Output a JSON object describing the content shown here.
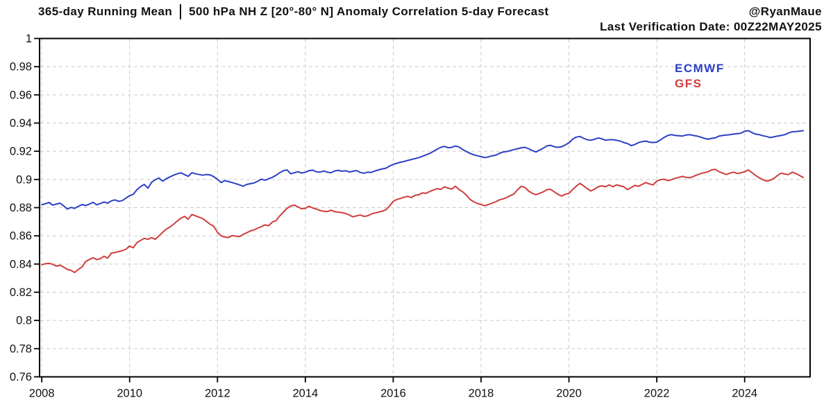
{
  "header": {
    "title_left": "365-day Running Mean",
    "title_right": "500 hPa NH Z [20°-80° N] Anomaly Correlation 5-day Forecast",
    "credit": "@RyanMaue",
    "verification": "Last Verification Date: 00Z22MAY2025"
  },
  "colors": {
    "ecmwf": "#2B3FC4",
    "gfs": "#D03C3C",
    "grid": "#c9c9c9",
    "axis": "#000000",
    "background": "#ffffff"
  },
  "chart_data": {
    "type": "line",
    "title": "365-day Running Mean | 500 hPa NH Z [20°-80° N] Anomaly Correlation 5-day Forecast",
    "subtitle": "Last Verification Date: 00Z22MAY2025",
    "grid": true,
    "legend_position": "top-right",
    "x_axis": {
      "label": "",
      "range": [
        2007.95,
        2025.49
      ],
      "ticks": [
        2008,
        2010,
        2012,
        2014,
        2016,
        2018,
        2020,
        2022,
        2024
      ]
    },
    "y_axis": {
      "label": "",
      "range": [
        0.76,
        1.0
      ],
      "ticks": [
        1,
        0.98,
        0.96,
        0.94,
        0.92,
        0.9,
        0.88,
        0.86,
        0.84,
        0.82,
        0.8,
        0.78,
        0.76
      ],
      "tick_labels": [
        "1",
        "0.98",
        "0.96",
        "0.94",
        "0.92",
        "0.9",
        "0.88",
        "0.86",
        "0.84",
        "0.82",
        "0.8",
        "0.78",
        "0.76"
      ]
    },
    "series": [
      {
        "name": "ECMWF",
        "color": "#2B3FC4",
        "start": 2008.0,
        "step": 0.0833333,
        "values": [
          0.882,
          0.8828,
          0.8837,
          0.8818,
          0.8825,
          0.8832,
          0.8812,
          0.879,
          0.8802,
          0.8795,
          0.881,
          0.8822,
          0.8815,
          0.8825,
          0.8838,
          0.882,
          0.883,
          0.884,
          0.8832,
          0.8848,
          0.8855,
          0.8845,
          0.885,
          0.8868,
          0.8885,
          0.8895,
          0.8928,
          0.895,
          0.8965,
          0.8938,
          0.898,
          0.8998,
          0.901,
          0.8988,
          0.9005,
          0.9018,
          0.903,
          0.904,
          0.9047,
          0.9035,
          0.9022,
          0.9048,
          0.904,
          0.9035,
          0.903,
          0.9035,
          0.9032,
          0.902,
          0.9,
          0.8978,
          0.8992,
          0.8985,
          0.8978,
          0.897,
          0.8962,
          0.8952,
          0.8965,
          0.897,
          0.8975,
          0.8988,
          0.9002,
          0.8995,
          0.9005,
          0.9015,
          0.903,
          0.9048,
          0.9062,
          0.9068,
          0.904,
          0.9048,
          0.9055,
          0.9045,
          0.9052,
          0.9062,
          0.9066,
          0.9055,
          0.9052,
          0.906,
          0.9052,
          0.9048,
          0.906,
          0.9065,
          0.9058,
          0.9062,
          0.9053,
          0.9058,
          0.9063,
          0.905,
          0.9044,
          0.9052,
          0.905,
          0.906,
          0.9068,
          0.9075,
          0.908,
          0.9095,
          0.9107,
          0.9115,
          0.9122,
          0.9128,
          0.9135,
          0.9142,
          0.9148,
          0.9155,
          0.9165,
          0.9175,
          0.9185,
          0.92,
          0.9215,
          0.9228,
          0.9235,
          0.9225,
          0.9228,
          0.9237,
          0.923,
          0.9212,
          0.9198,
          0.9185,
          0.9175,
          0.9168,
          0.9162,
          0.9155,
          0.916,
          0.9168,
          0.9172,
          0.9185,
          0.9195,
          0.9198,
          0.9205,
          0.9212,
          0.9218,
          0.9225,
          0.9228,
          0.9218,
          0.9205,
          0.9195,
          0.9208,
          0.9222,
          0.9238,
          0.9242,
          0.9232,
          0.9228,
          0.9232,
          0.9245,
          0.926,
          0.9285,
          0.93,
          0.9305,
          0.9292,
          0.9282,
          0.9278,
          0.9285,
          0.9295,
          0.9288,
          0.9278,
          0.9282,
          0.9282,
          0.9278,
          0.9272,
          0.9262,
          0.9255,
          0.924,
          0.9248,
          0.9262,
          0.9268,
          0.9272,
          0.9265,
          0.9262,
          0.9265,
          0.928,
          0.9298,
          0.9312,
          0.9318,
          0.9312,
          0.931,
          0.9308,
          0.9315,
          0.9318,
          0.9312,
          0.9308,
          0.93,
          0.9292,
          0.9285,
          0.9292,
          0.9295,
          0.9308,
          0.9312,
          0.9315,
          0.9318,
          0.9322,
          0.9325,
          0.9328,
          0.9342,
          0.9346,
          0.9332,
          0.9322,
          0.9318,
          0.931,
          0.9305,
          0.9297,
          0.9302,
          0.9308,
          0.9312,
          0.9318,
          0.933,
          0.9338,
          0.934,
          0.9343,
          0.9346
        ]
      },
      {
        "name": "GFS",
        "color": "#D03C3C",
        "start": 2008.0,
        "step": 0.0833333,
        "values": [
          0.8395,
          0.8402,
          0.8405,
          0.8398,
          0.8385,
          0.8392,
          0.8378,
          0.8362,
          0.8355,
          0.834,
          0.8362,
          0.838,
          0.8418,
          0.8432,
          0.8445,
          0.8432,
          0.8438,
          0.8455,
          0.8442,
          0.8478,
          0.8482,
          0.8488,
          0.8495,
          0.8505,
          0.8528,
          0.8515,
          0.8552,
          0.8568,
          0.8582,
          0.8575,
          0.8588,
          0.8575,
          0.86,
          0.8625,
          0.8648,
          0.8662,
          0.8682,
          0.8705,
          0.8725,
          0.8738,
          0.8718,
          0.8752,
          0.8742,
          0.8732,
          0.8722,
          0.8702,
          0.8682,
          0.8668,
          0.8625,
          0.86,
          0.8592,
          0.8588,
          0.8602,
          0.8598,
          0.8595,
          0.861,
          0.8622,
          0.8635,
          0.8642,
          0.8655,
          0.8665,
          0.8678,
          0.8672,
          0.8698,
          0.8708,
          0.8742,
          0.8768,
          0.8795,
          0.8812,
          0.8818,
          0.8805,
          0.8792,
          0.8795,
          0.881,
          0.8798,
          0.879,
          0.878,
          0.8775,
          0.8772,
          0.8782,
          0.8772,
          0.8768,
          0.8765,
          0.8758,
          0.8748,
          0.8735,
          0.8742,
          0.8748,
          0.8738,
          0.8742,
          0.8755,
          0.8762,
          0.8768,
          0.8775,
          0.8785,
          0.8812,
          0.8845,
          0.8858,
          0.8865,
          0.8875,
          0.888,
          0.8872,
          0.8888,
          0.8892,
          0.8905,
          0.8902,
          0.8915,
          0.8925,
          0.8935,
          0.893,
          0.8948,
          0.8938,
          0.8932,
          0.8952,
          0.8928,
          0.8912,
          0.8888,
          0.8858,
          0.8842,
          0.883,
          0.8822,
          0.8814,
          0.8822,
          0.8832,
          0.8842,
          0.8855,
          0.8862,
          0.8872,
          0.8885,
          0.8898,
          0.8928,
          0.8952,
          0.8942,
          0.8918,
          0.8902,
          0.8892,
          0.8902,
          0.8912,
          0.8928,
          0.893,
          0.8912,
          0.8895,
          0.8882,
          0.8895,
          0.8902,
          0.8928,
          0.8952,
          0.8972,
          0.8955,
          0.8935,
          0.8918,
          0.8932,
          0.8948,
          0.8955,
          0.8948,
          0.8962,
          0.8948,
          0.8962,
          0.8955,
          0.8948,
          0.8928,
          0.8942,
          0.8958,
          0.8952,
          0.8965,
          0.8978,
          0.8968,
          0.8962,
          0.8988,
          0.8998,
          0.9002,
          0.8992,
          0.8998,
          0.9008,
          0.9015,
          0.9022,
          0.9015,
          0.9012,
          0.9022,
          0.9032,
          0.9042,
          0.9048,
          0.9055,
          0.9068,
          0.9072,
          0.9055,
          0.9045,
          0.9035,
          0.9045,
          0.9052,
          0.9042,
          0.9048,
          0.9055,
          0.9068,
          0.9048,
          0.9028,
          0.9012,
          0.8998,
          0.8988,
          0.8995,
          0.9008,
          0.9028,
          0.9045,
          0.9038,
          0.9035,
          0.9052,
          0.9042,
          0.9028,
          0.9015
        ]
      }
    ]
  }
}
